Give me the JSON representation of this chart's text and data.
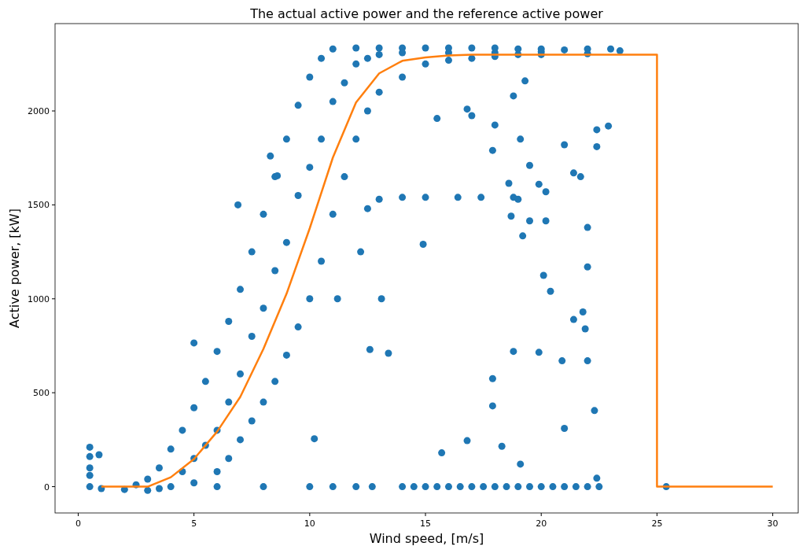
{
  "chart_data": {
    "type": "scatter",
    "title": "The actual active power and the reference active power",
    "xlabel": "Wind speed, [m/s]",
    "ylabel": "Active power, [kW]",
    "xlim": [
      -1.0,
      31.1
    ],
    "ylim": [
      -140,
      2465
    ],
    "xticks": [
      0,
      5,
      10,
      15,
      20,
      25,
      30
    ],
    "yticks": [
      0,
      500,
      1000,
      1500,
      2000
    ],
    "grid": false,
    "series": [
      {
        "marker": "circle",
        "color": "#1f77b4",
        "x": [
          3,
          3.5,
          4,
          4.5,
          5,
          5.5,
          6,
          6.5,
          7,
          7.5,
          8,
          8.5,
          9,
          9.5,
          10,
          10.5,
          11,
          12,
          13,
          14,
          15,
          16,
          17,
          18,
          19,
          20,
          21,
          22,
          23,
          23.4,
          4,
          5,
          6,
          6.5,
          7,
          7.5,
          8,
          8.5,
          9,
          9.5,
          10,
          10.5,
          11,
          11.5,
          12,
          12.5,
          13,
          14,
          15,
          16,
          17,
          18,
          19,
          20,
          22,
          4.5,
          5.5,
          6.5,
          7.5,
          8.5,
          9.5,
          10.5,
          11.5,
          12.5,
          5,
          6,
          7,
          8,
          9,
          10,
          11,
          12,
          13,
          14,
          16,
          18,
          20,
          0.5,
          0.5,
          0.5,
          0.5,
          0.5,
          0.9,
          1,
          2,
          3,
          3.5,
          2.5,
          6,
          8,
          10,
          11,
          12,
          12.7,
          14,
          14.5,
          15,
          15.5,
          16,
          16.5,
          17,
          17.5,
          18,
          18.5,
          19,
          19.5,
          20,
          20.5,
          21,
          21.5,
          22,
          22.5,
          25.4,
          5,
          6.9,
          8.3,
          8.6,
          15.5,
          16.8,
          17,
          18,
          18.8,
          19.3,
          19.1,
          19.5,
          17.9,
          21,
          22.4,
          22.9,
          22.4,
          21.4,
          21.7,
          20.2,
          19.9,
          18.6,
          18.8,
          19,
          17.4,
          16.4,
          15,
          14,
          13,
          12.5,
          14.9,
          18.7,
          19.5,
          20.2,
          19.2,
          22,
          22,
          20.1,
          20.4,
          13.4,
          12.6,
          18.8,
          19.9,
          20.9,
          22,
          21.9,
          21.8,
          21.4,
          21,
          22.3,
          18.3,
          19.1,
          16.8,
          15.7,
          22.4,
          17.9,
          17.9,
          10.2,
          11.2,
          13.1,
          12.2
        ],
        "values": [
          40,
          100,
          200,
          300,
          420,
          560,
          720,
          880,
          1050,
          1250,
          1450,
          1650,
          1850,
          2030,
          2180,
          2280,
          2330,
          2335,
          2335,
          2335,
          2335,
          2335,
          2335,
          2335,
          2330,
          2330,
          2325,
          2330,
          2330,
          2320,
          0,
          20,
          80,
          150,
          250,
          350,
          450,
          560,
          700,
          850,
          1000,
          1200,
          1450,
          1650,
          1850,
          2000,
          2100,
          2180,
          2250,
          2270,
          2280,
          2290,
          2300,
          2300,
          2305,
          80,
          220,
          450,
          800,
          1150,
          1550,
          1850,
          2150,
          2280,
          150,
          300,
          600,
          950,
          1300,
          1700,
          2050,
          2250,
          2300,
          2310,
          2310,
          2310,
          2315,
          0,
          60,
          100,
          160,
          210,
          170,
          -10,
          -15,
          -20,
          -10,
          10,
          0,
          0,
          0,
          0,
          0,
          0,
          0,
          0,
          0,
          0,
          0,
          0,
          0,
          0,
          0,
          0,
          0,
          0,
          0,
          0,
          0,
          0,
          0,
          0,
          0,
          765,
          1500,
          1760,
          1655,
          1960,
          2010,
          1975,
          1925,
          2080,
          2160,
          1850,
          1710,
          1790,
          1820,
          1900,
          1920,
          1810,
          1670,
          1650,
          1570,
          1610,
          1615,
          1540,
          1530,
          1540,
          1540,
          1540,
          1540,
          1530,
          1480,
          1290,
          1440,
          1415,
          1415,
          1335,
          1380,
          1170,
          1125,
          1040,
          710,
          730,
          720,
          715,
          670,
          670,
          840,
          930,
          890,
          310,
          405,
          215,
          120,
          245,
          180,
          45,
          575,
          430,
          255,
          1000,
          1000,
          1250
        ]
      },
      {
        "type": "line",
        "marker": "none",
        "color": "#ff7f0e",
        "line_style": "solid",
        "x": [
          1,
          3,
          4,
          5,
          6,
          7,
          8,
          9,
          10,
          11,
          12,
          13,
          14,
          15,
          16,
          17,
          25,
          25,
          30
        ],
        "values": [
          0,
          0,
          50,
          147,
          293,
          478,
          733,
          1027,
          1375,
          1752,
          2045,
          2200,
          2267,
          2285,
          2295,
          2300,
          2300,
          0,
          0
        ]
      }
    ]
  }
}
